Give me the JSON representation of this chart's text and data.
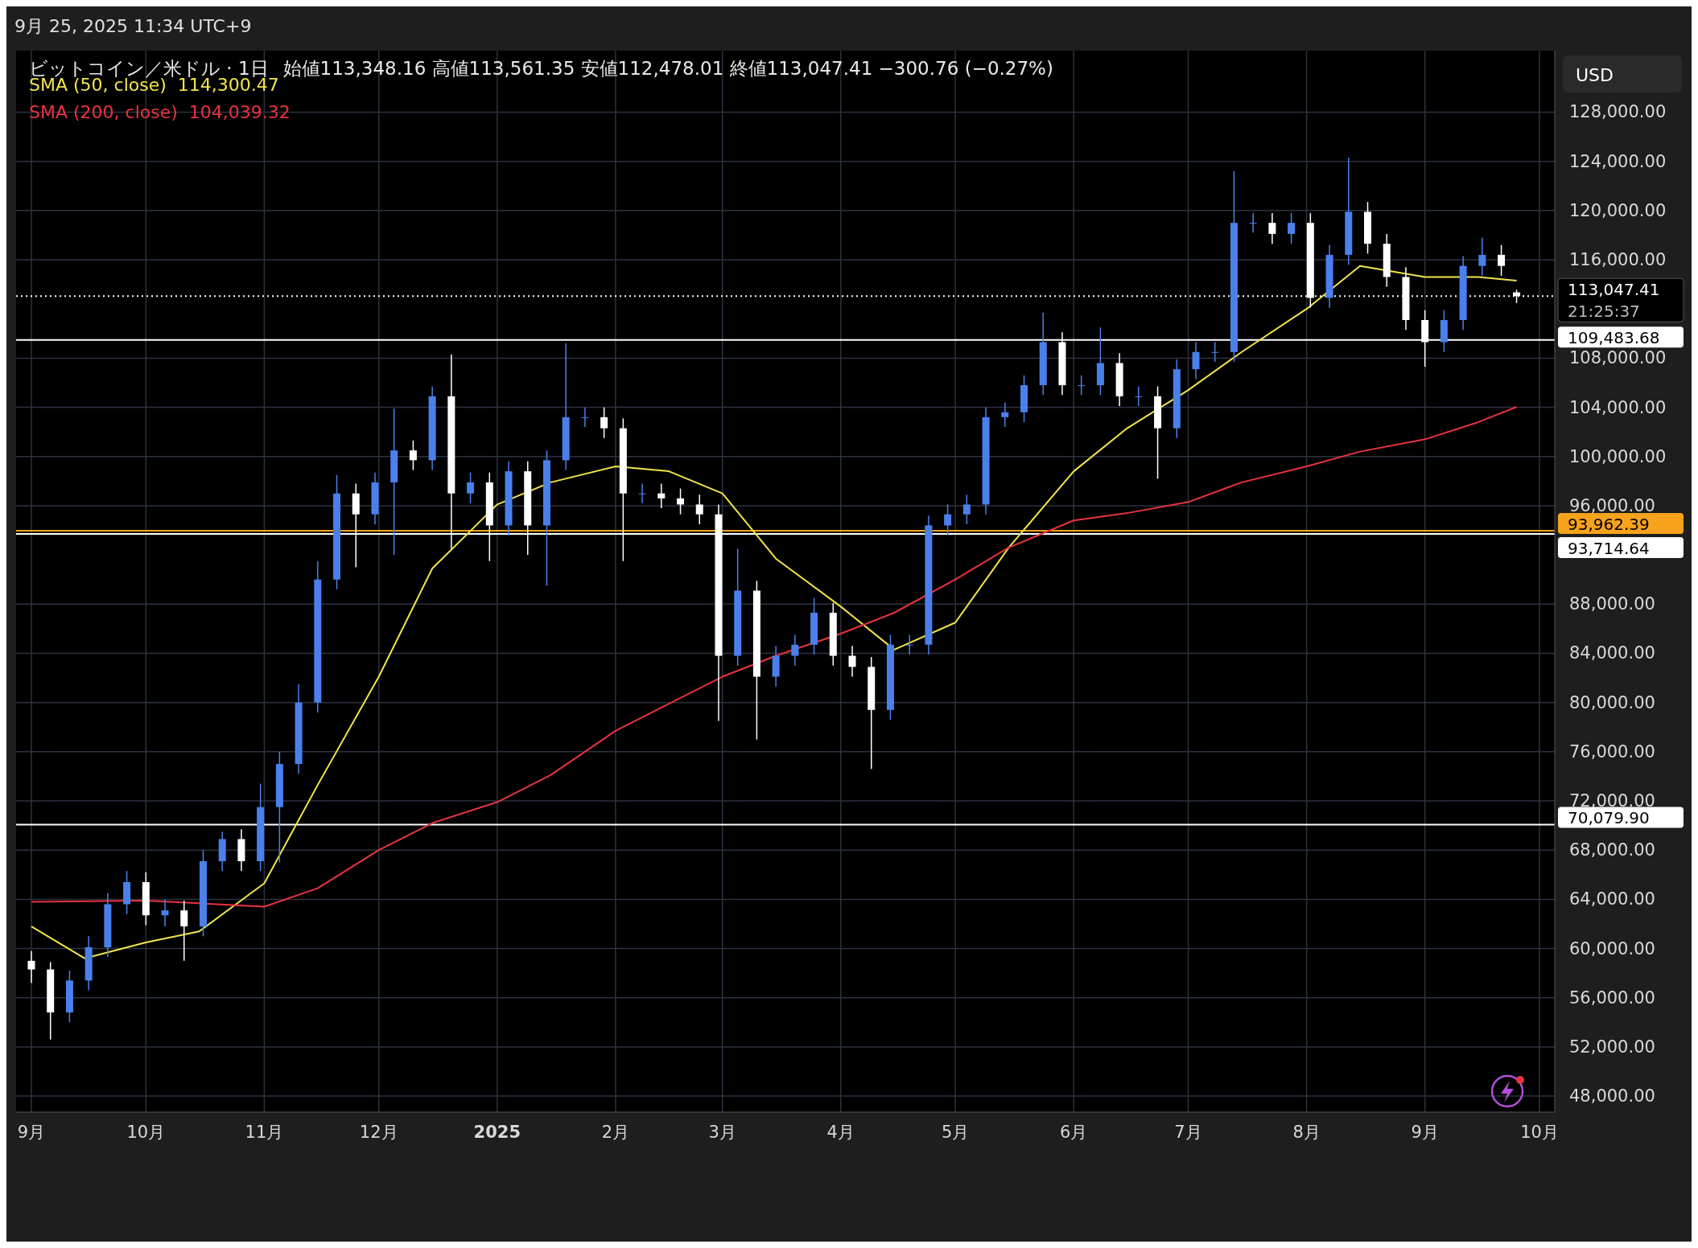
{
  "chart_data": {
    "type": "candlestick",
    "title": "ビットコイン／米ドル · 1日",
    "subtitle": "始値113,348.16  高値113,561.35  安値112,478.01  終値113,047.41  −300.76 (−0.27%)",
    "ylabel": "USD",
    "x": [
      "2024-09-01",
      "2024-09-06",
      "2024-09-11",
      "2024-09-16",
      "2024-09-21",
      "2024-09-26",
      "2024-10-01",
      "2024-10-06",
      "2024-10-11",
      "2024-10-16",
      "2024-10-21",
      "2024-10-26",
      "2024-10-31",
      "2024-11-05",
      "2024-11-10",
      "2024-11-15",
      "2024-11-20",
      "2024-11-25",
      "2024-11-30",
      "2024-12-05",
      "2024-12-10",
      "2024-12-15",
      "2024-12-20",
      "2024-12-25",
      "2024-12-30",
      "2025-01-04",
      "2025-01-09",
      "2025-01-14",
      "2025-01-19",
      "2025-01-24",
      "2025-01-29",
      "2025-02-03",
      "2025-02-08",
      "2025-02-13",
      "2025-02-18",
      "2025-02-23",
      "2025-02-28",
      "2025-03-05",
      "2025-03-10",
      "2025-03-15",
      "2025-03-20",
      "2025-03-25",
      "2025-03-30",
      "2025-04-04",
      "2025-04-09",
      "2025-04-14",
      "2025-04-19",
      "2025-04-24",
      "2025-04-29",
      "2025-05-04",
      "2025-05-09",
      "2025-05-14",
      "2025-05-19",
      "2025-05-24",
      "2025-05-29",
      "2025-06-03",
      "2025-06-08",
      "2025-06-13",
      "2025-06-18",
      "2025-06-23",
      "2025-06-28",
      "2025-07-03",
      "2025-07-08",
      "2025-07-13",
      "2025-07-18",
      "2025-07-23",
      "2025-07-28",
      "2025-08-02",
      "2025-08-07",
      "2025-08-12",
      "2025-08-17",
      "2025-08-22",
      "2025-08-27",
      "2025-09-01",
      "2025-09-06",
      "2025-09-11",
      "2025-09-16",
      "2025-09-21",
      "2025-09-25"
    ],
    "ohlc": [
      [
        59000,
        59800,
        57200,
        58300
      ],
      [
        58300,
        58900,
        52600,
        54800
      ],
      [
        54800,
        58200,
        54000,
        57400
      ],
      [
        57400,
        61000,
        56600,
        60100
      ],
      [
        60100,
        64500,
        59300,
        63600
      ],
      [
        63600,
        66300,
        62800,
        65400
      ],
      [
        65400,
        66200,
        61900,
        62700
      ],
      [
        62700,
        64000,
        61800,
        63100
      ],
      [
        63100,
        63900,
        59000,
        61800
      ],
      [
        61800,
        68000,
        61000,
        67100
      ],
      [
        67100,
        69500,
        66300,
        68900
      ],
      [
        68900,
        69700,
        66300,
        67100
      ],
      [
        67100,
        73400,
        66300,
        71500
      ],
      [
        71500,
        76000,
        67000,
        75000
      ],
      [
        75000,
        81500,
        74200,
        80000
      ],
      [
        80000,
        91500,
        79200,
        90000
      ],
      [
        90000,
        98500,
        89200,
        97000
      ],
      [
        97000,
        97800,
        91000,
        95300
      ],
      [
        95300,
        98700,
        94500,
        97900
      ],
      [
        97900,
        103900,
        92000,
        100500
      ],
      [
        100500,
        101300,
        98900,
        99700
      ],
      [
        99700,
        105700,
        98900,
        104900
      ],
      [
        104900,
        108300,
        92500,
        97000
      ],
      [
        97000,
        98700,
        96200,
        97900
      ],
      [
        97900,
        98700,
        91500,
        94400
      ],
      [
        94400,
        99600,
        93600,
        98800
      ],
      [
        98800,
        99600,
        92000,
        94400
      ],
      [
        94400,
        100500,
        89500,
        99700
      ],
      [
        99700,
        109200,
        98900,
        103200
      ],
      [
        103200,
        104000,
        102400,
        103200
      ],
      [
        103200,
        104000,
        101500,
        102300
      ],
      [
        102300,
        103100,
        91500,
        97000
      ],
      [
        97000,
        97800,
        96200,
        97000
      ],
      [
        97000,
        97800,
        95800,
        96600
      ],
      [
        96600,
        97400,
        95300,
        96100
      ],
      [
        96100,
        96900,
        94500,
        95300
      ],
      [
        95300,
        96100,
        78500,
        83800
      ],
      [
        83800,
        92500,
        83000,
        89100
      ],
      [
        89100,
        89900,
        77000,
        82100
      ],
      [
        82100,
        84600,
        81300,
        83800
      ],
      [
        83800,
        85500,
        83000,
        84700
      ],
      [
        84700,
        88500,
        83900,
        87300
      ],
      [
        87300,
        88100,
        83000,
        83800
      ],
      [
        83800,
        84600,
        82100,
        82900
      ],
      [
        82900,
        83700,
        74600,
        79400
      ],
      [
        79400,
        85500,
        78600,
        84700
      ],
      [
        84700,
        85500,
        83900,
        84700
      ],
      [
        84700,
        95200,
        83900,
        94400
      ],
      [
        94400,
        96100,
        93600,
        95300
      ],
      [
        95300,
        96900,
        94500,
        96100
      ],
      [
        96100,
        104000,
        95300,
        103200
      ],
      [
        103200,
        104400,
        102400,
        103600
      ],
      [
        103600,
        106600,
        102800,
        105800
      ],
      [
        105800,
        111700,
        105000,
        109300
      ],
      [
        109300,
        110100,
        105000,
        105800
      ],
      [
        105800,
        106600,
        105000,
        105800
      ],
      [
        105800,
        110500,
        105000,
        107600
      ],
      [
        107600,
        108400,
        104100,
        104900
      ],
      [
        104900,
        105700,
        104100,
        104900
      ],
      [
        104900,
        105700,
        98200,
        102300
      ],
      [
        102300,
        107900,
        101500,
        107100
      ],
      [
        107100,
        109300,
        106300,
        108500
      ],
      [
        108500,
        109300,
        107700,
        108500
      ],
      [
        108500,
        123200,
        107700,
        119000
      ],
      [
        119000,
        119800,
        118200,
        119000
      ],
      [
        119000,
        119800,
        117300,
        118100
      ],
      [
        118100,
        119800,
        117300,
        119000
      ],
      [
        119000,
        119800,
        112100,
        112900
      ],
      [
        112900,
        117200,
        112100,
        116400
      ],
      [
        116400,
        124300,
        115600,
        119900
      ],
      [
        119900,
        120700,
        116500,
        117300
      ],
      [
        117300,
        118100,
        113800,
        114600
      ],
      [
        114600,
        115400,
        110300,
        111100
      ],
      [
        111100,
        111900,
        107300,
        109300
      ],
      [
        109300,
        111900,
        108500,
        111100
      ],
      [
        111100,
        116300,
        110300,
        115500
      ],
      [
        115500,
        117800,
        114700,
        116400
      ],
      [
        116400,
        117200,
        114700,
        115500
      ],
      [
        113348.16,
        113561.35,
        112478.01,
        113047.41
      ]
    ],
    "colors": [
      "#ffffff",
      "#ffffff",
      "#4a80ec",
      "#4a80ec",
      "#4a80ec",
      "#4a80ec",
      "#ffffff",
      "#4a80ec",
      "#ffffff",
      "#4a80ec",
      "#4a80ec",
      "#ffffff",
      "#4a80ec",
      "#4a80ec",
      "#4a80ec",
      "#4a80ec",
      "#4a80ec",
      "#ffffff",
      "#4a80ec",
      "#4a80ec",
      "#ffffff",
      "#4a80ec",
      "#ffffff",
      "#4a80ec",
      "#ffffff",
      "#4a80ec",
      "#ffffff",
      "#4a80ec",
      "#4a80ec",
      "#4a80ec",
      "#ffffff",
      "#ffffff",
      "#4a80ec",
      "#ffffff",
      "#ffffff",
      "#ffffff",
      "#ffffff",
      "#4a80ec",
      "#ffffff",
      "#4a80ec",
      "#4a80ec",
      "#4a80ec",
      "#ffffff",
      "#ffffff",
      "#ffffff",
      "#4a80ec",
      "#4a80ec",
      "#4a80ec",
      "#4a80ec",
      "#4a80ec",
      "#4a80ec",
      "#4a80ec",
      "#4a80ec",
      "#4a80ec",
      "#ffffff",
      "#4a80ec",
      "#4a80ec",
      "#ffffff",
      "#4a80ec",
      "#ffffff",
      "#4a80ec",
      "#4a80ec",
      "#4a80ec",
      "#4a80ec",
      "#4a80ec",
      "#ffffff",
      "#4a80ec",
      "#ffffff",
      "#4a80ec",
      "#4a80ec",
      "#ffffff",
      "#ffffff",
      "#ffffff",
      "#ffffff",
      "#4a80ec",
      "#4a80ec",
      "#4a80ec",
      "#ffffff",
      "#ffffff"
    ],
    "series": [
      {
        "name": "SMA (50, close)",
        "type": "line",
        "color": "#f2e44b",
        "x": [
          "2024-09-01",
          "2024-09-15",
          "2024-10-01",
          "2024-10-15",
          "2024-11-01",
          "2024-11-15",
          "2024-12-01",
          "2024-12-15",
          "2025-01-01",
          "2025-01-15",
          "2025-02-01",
          "2025-02-15",
          "2025-03-01",
          "2025-03-15",
          "2025-04-01",
          "2025-04-15",
          "2025-05-01",
          "2025-05-15",
          "2025-06-01",
          "2025-06-15",
          "2025-07-01",
          "2025-07-15",
          "2025-08-01",
          "2025-08-15",
          "2025-09-01",
          "2025-09-15",
          "2025-09-25"
        ],
        "values": [
          61800,
          59200,
          60500,
          61400,
          65300,
          73300,
          82100,
          90900,
          96100,
          97900,
          99200,
          98800,
          97000,
          91700,
          87800,
          84300,
          86500,
          92600,
          98800,
          102300,
          105400,
          108500,
          112000,
          115500,
          114600,
          114600,
          114300.47
        ]
      },
      {
        "name": "SMA (200, close)",
        "type": "line",
        "color": "#e8333f",
        "x": [
          "2024-09-01",
          "2024-10-01",
          "2024-11-01",
          "2024-11-15",
          "2024-12-01",
          "2024-12-15",
          "2025-01-01",
          "2025-01-15",
          "2025-02-01",
          "2025-02-15",
          "2025-03-01",
          "2025-03-15",
          "2025-04-01",
          "2025-04-15",
          "2025-05-01",
          "2025-05-15",
          "2025-06-01",
          "2025-06-15",
          "2025-07-01",
          "2025-07-15",
          "2025-08-01",
          "2025-08-15",
          "2025-09-01",
          "2025-09-15",
          "2025-09-25"
        ],
        "values": [
          63800,
          63900,
          63400,
          64900,
          68000,
          70200,
          71900,
          74100,
          77700,
          79900,
          82100,
          83800,
          85600,
          87300,
          90000,
          92600,
          94800,
          95400,
          96300,
          97900,
          99200,
          100400,
          101400,
          102800,
          104039.32
        ]
      }
    ],
    "xlim": [
      "2024-08-28",
      "2025-10-05"
    ],
    "xticks": [
      {
        "value": "2024-09-01",
        "label": "9月"
      },
      {
        "value": "2024-10-01",
        "label": "10月"
      },
      {
        "value": "2024-11-01",
        "label": "11月"
      },
      {
        "value": "2024-12-01",
        "label": "12月"
      },
      {
        "value": "2025-01-01",
        "label": "2025"
      },
      {
        "value": "2025-02-01",
        "label": "2月"
      },
      {
        "value": "2025-03-01",
        "label": "3月"
      },
      {
        "value": "2025-04-01",
        "label": "4月"
      },
      {
        "value": "2025-05-01",
        "label": "5月"
      },
      {
        "value": "2025-06-01",
        "label": "6月"
      },
      {
        "value": "2025-07-01",
        "label": "7月"
      },
      {
        "value": "2025-08-01",
        "label": "8月"
      },
      {
        "value": "2025-09-01",
        "label": "9月"
      },
      {
        "value": "2025-10-01",
        "label": "10月"
      }
    ],
    "ylim": [
      46700,
      133000
    ],
    "yticks": [
      {
        "value": 48000,
        "label": "48,000.00"
      },
      {
        "value": 52000,
        "label": "52,000.00"
      },
      {
        "value": 56000,
        "label": "56,000.00"
      },
      {
        "value": 60000,
        "label": "60,000.00"
      },
      {
        "value": 64000,
        "label": "64,000.00"
      },
      {
        "value": 68000,
        "label": "68,000.00"
      },
      {
        "value": 72000,
        "label": "72,000.00"
      },
      {
        "value": 76000,
        "label": "76,000.00"
      },
      {
        "value": 80000,
        "label": "80,000.00"
      },
      {
        "value": 84000,
        "label": "84,000.00"
      },
      {
        "value": 88000,
        "label": "88,000.00"
      },
      {
        "value": 100000,
        "label": "100,000.00"
      },
      {
        "value": 104000,
        "label": "104,000.00"
      },
      {
        "value": 108000,
        "label": "108,000.00"
      },
      {
        "value": 116000,
        "label": "116,000.00"
      },
      {
        "value": 120000,
        "label": "120,000.00"
      },
      {
        "value": 124000,
        "label": "124,000.00"
      },
      {
        "value": 128000,
        "label": "128,000.00"
      },
      {
        "value": 96000,
        "label": "96,000.00"
      }
    ],
    "ref_lines": [
      {
        "axis": "y",
        "value": 113047.41,
        "label": "113,047.41",
        "color": "#ffffff",
        "line_style": "dotted"
      },
      {
        "axis": "y",
        "value": 109483.68,
        "label": "109,483.68",
        "color": "#ffffff",
        "line_style": "solid"
      },
      {
        "axis": "y",
        "value": 93962.39,
        "label": "93,962.39",
        "color": "#f7a21b",
        "line_style": "solid"
      },
      {
        "axis": "y",
        "value": 93714.64,
        "label": "93,714.64",
        "color": "#ffffff",
        "line_style": "solid"
      },
      {
        "axis": "y",
        "value": 70079.9,
        "label": "70,079.90",
        "color": "#ffffff",
        "line_style": "solid"
      }
    ],
    "annotations": [
      "9月 25, 2025 11:34 UTC+9",
      "114,300.47",
      "104,039.32",
      "21:25:37"
    ],
    "grid": true,
    "legend": "top left"
  }
}
